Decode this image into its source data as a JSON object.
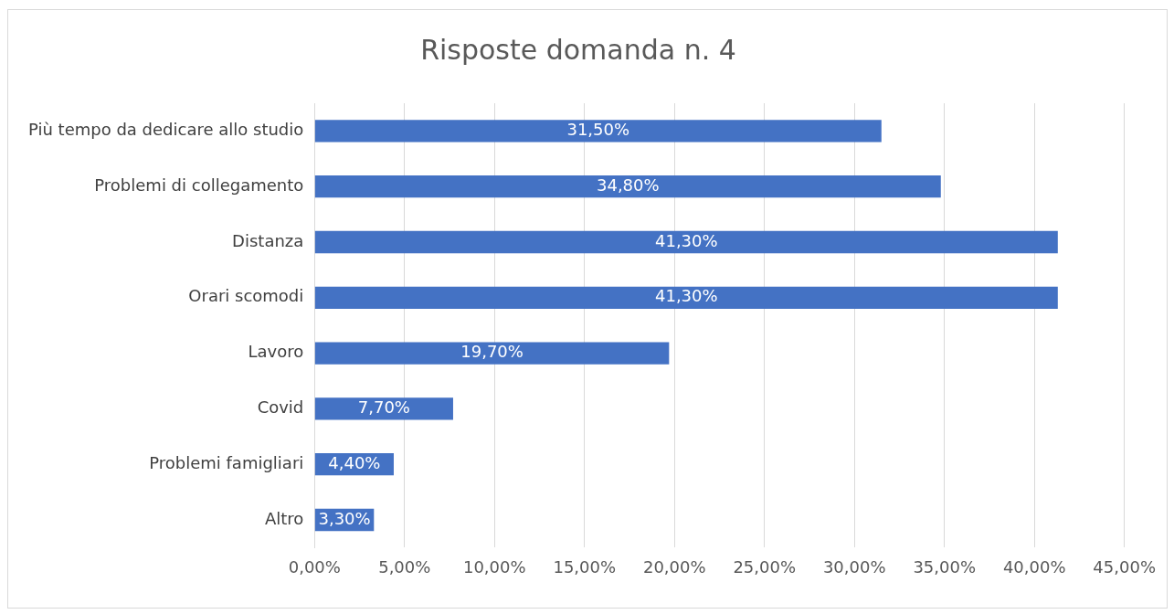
{
  "chart_data": {
    "type": "bar",
    "orientation": "horizontal",
    "title": "Risposte domanda n. 4",
    "categories": [
      "Più tempo da dedicare allo studio",
      "Problemi di collegamento",
      "Distanza",
      "Orari scomodi",
      "Lavoro",
      "Covid",
      "Problemi famigliari",
      "Altro"
    ],
    "values": [
      31.5,
      34.8,
      41.3,
      41.3,
      19.7,
      7.7,
      4.4,
      3.3
    ],
    "value_labels": [
      "31,50%",
      "34,80%",
      "41,30%",
      "41,30%",
      "19,70%",
      "7,70%",
      "4,40%",
      "3,30%"
    ],
    "color": "#4472c4",
    "xlim": [
      0,
      45
    ],
    "xticks": [
      {
        "value": 0,
        "label": "0,00%"
      },
      {
        "value": 5,
        "label": "5,00%"
      },
      {
        "value": 10,
        "label": "10,00%"
      },
      {
        "value": 15,
        "label": "15,00%"
      },
      {
        "value": 20,
        "label": "20,00%"
      },
      {
        "value": 25,
        "label": "25,00%"
      },
      {
        "value": 30,
        "label": "30,00%"
      },
      {
        "value": 35,
        "label": "35,00%"
      },
      {
        "value": 40,
        "label": "40,00%"
      },
      {
        "value": 45,
        "label": "45,00%"
      }
    ],
    "grid": "x",
    "legend": false
  }
}
